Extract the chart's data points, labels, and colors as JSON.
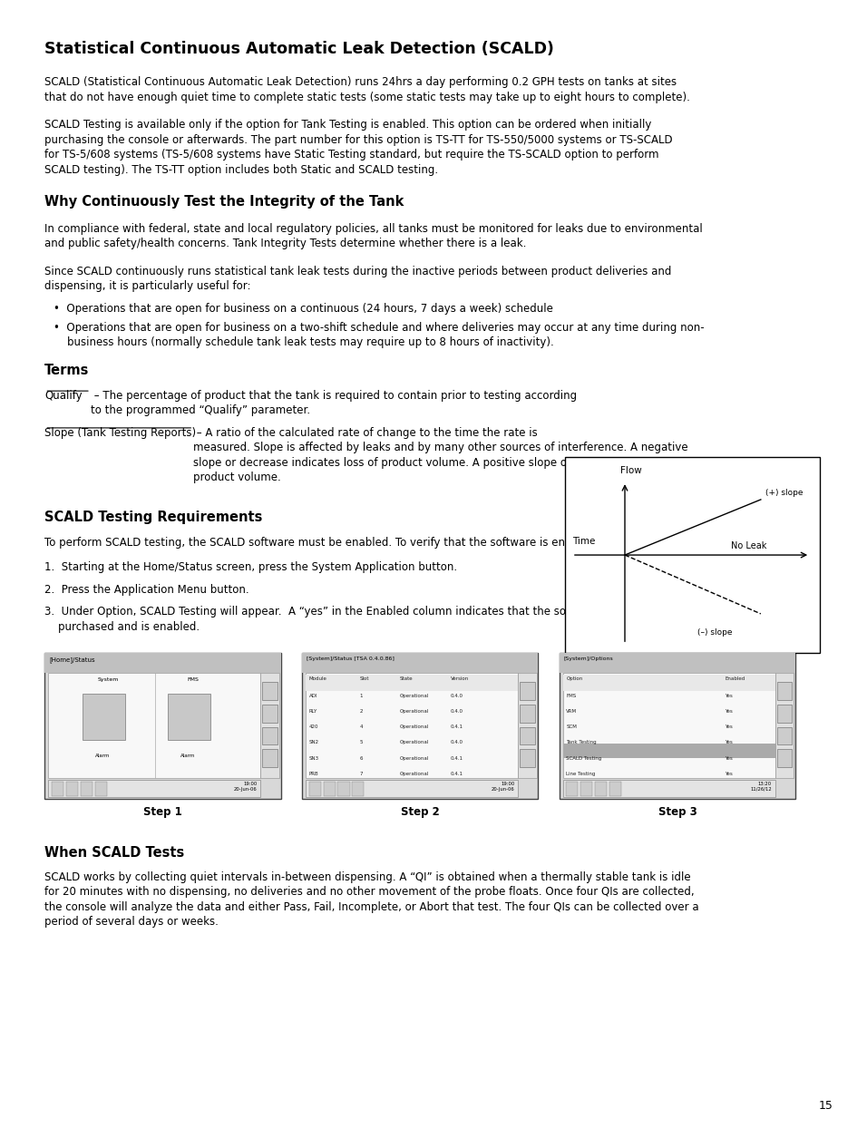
{
  "bg_color": "#ffffff",
  "text_color": "#000000",
  "page_number": "15",
  "title": "Statistical Continuous Automatic Leak Detection (SCALD)",
  "para1": "SCALD (Statistical Continuous Automatic Leak Detection) runs 24hrs a day performing 0.2 GPH tests on tanks at sites\nthat do not have enough quiet time to complete static tests (some static tests may take up to eight hours to complete).",
  "para2": "SCALD Testing is available only if the option for Tank Testing is enabled. This option can be ordered when initially\npurchasing the console or afterwards. The part number for this option is TS-TT for TS-550/5000 systems or TS-SCALD\nfor TS-5/608 systems (TS-5/608 systems have Static Testing standard, but require the TS-SCALD option to perform\nSCALD testing). The TS-TT option includes both Static and SCALD testing.",
  "section2_title": "Why Continuously Test the Integrity of the Tank",
  "section2_para1": "In compliance with federal, state and local regulatory policies, all tanks must be monitored for leaks due to environmental\nand public safety/health concerns. Tank Integrity Tests determine whether there is a leak.",
  "section2_para2": "Since SCALD continuously runs statistical tank leak tests during the inactive periods between product deliveries and\ndispensing, it is particularly useful for:",
  "bullet1": "•  Operations that are open for business on a continuous (24 hours, 7 days a week) schedule",
  "bullet2": "•  Operations that are open for business on a two-shift schedule and where deliveries may occur at any time during non-\n    business hours (normally schedule tank leak tests may require up to 8 hours of inactivity).",
  "section3_title": "Terms",
  "qualify_label": "Qualify",
  "qualify_text": " – The percentage of product that the tank is required to contain prior to testing according\nto the programmed “Qualify” parameter.",
  "slope_label": "Slope (Tank Testing Reports)",
  "slope_text": " – A ratio of the calculated rate of change to the time the rate is\nmeasured. Slope is affected by leaks and by many other sources of interference. A negative\nslope or decrease indicates loss of product volume. A positive slope or increase indicates a rise in\nproduct volume.",
  "section4_title": "SCALD Testing Requirements",
  "section4_para": "To perform SCALD testing, the SCALD software must be enabled. To verify that the software is enabled:",
  "step1": "1.  Starting at the Home/Status screen, press the System Application button.",
  "step2": "2.  Press the Application Menu button.",
  "step3": "3.  Under Option, SCALD Testing will appear.  A “yes” in the Enabled column indicates that the software has been\n    purchased and is enabled.",
  "step1_label": "Step 1",
  "step2_label": "Step 2",
  "step3_label": "Step 3",
  "section5_title": "When SCALD Tests",
  "section5_para": "SCALD works by collecting quiet intervals in-between dispensing. A “QI” is obtained when a thermally stable tank is idle\nfor 20 minutes with no dispensing, no deliveries and no other movement of the probe floats. Once four QIs are collected,\nthe console will analyze the data and either Pass, Fail, Incomplete, or Abort that test. The four QIs can be collected over a\nperiod of several days or weeks."
}
